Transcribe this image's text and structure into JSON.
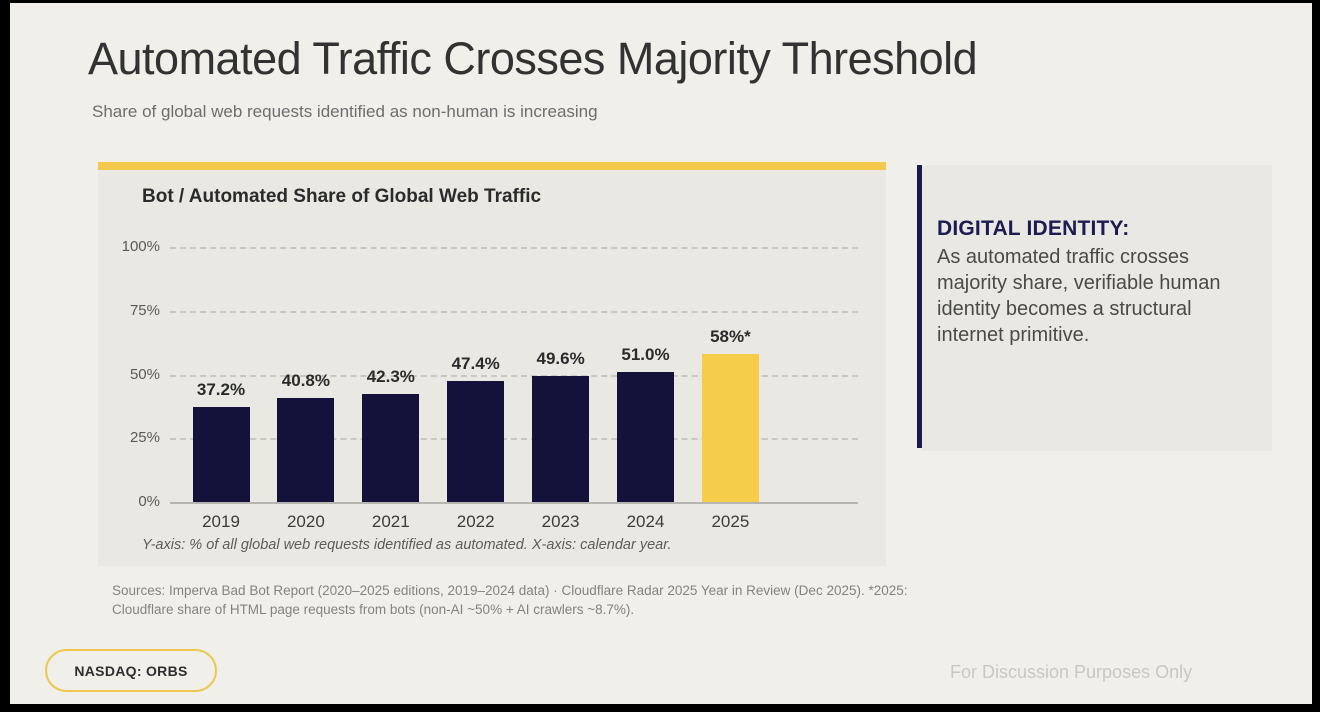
{
  "slide": {
    "title": "Automated Traffic Crosses Majority Threshold",
    "subtitle": "Share of global web requests identified as non-human is increasing",
    "ticker_badge": "NASDAQ: ORBS",
    "disclaimer": "For Discussion Purposes Only"
  },
  "chart_card": {
    "title": "Bot / Automated Share of Global Web Traffic",
    "axis_note": "Y-axis: % of all global web requests identified as automated.  X-axis: calendar year.",
    "sources": "Sources: Imperva Bad Bot Report (2020–2025 editions, 2019–2024 data) · Cloudflare Radar 2025 Year in Review (Dec 2025).  *2025: Cloudflare share of HTML page requests from bots (non-AI ~50% + AI crawlers ~8.7%)."
  },
  "chart_data": {
    "type": "bar",
    "title": "Bot / Automated Share of Global Web Traffic",
    "categories": [
      "2019",
      "2020",
      "2021",
      "2022",
      "2023",
      "2024",
      "2025"
    ],
    "values": [
      37.2,
      40.8,
      42.3,
      47.4,
      49.6,
      51.0,
      58
    ],
    "value_labels": [
      "37.2%",
      "40.8%",
      "42.3%",
      "47.4%",
      "49.6%",
      "51.0%",
      "58%*"
    ],
    "highlight_index": 6,
    "ylabel": "% of all global web requests identified as automated",
    "xlabel": "calendar year",
    "ylim": [
      0,
      100
    ],
    "yticks": [
      "0%",
      "25%",
      "50%",
      "75%",
      "100%"
    ],
    "grid": "dashed horizontal gridlines, solid baseline",
    "legend": "none",
    "bar_color": "#14123a",
    "highlight_color": "#f6cd4b"
  },
  "side_panel": {
    "heading": "DIGITAL IDENTITY:",
    "body": "As automated traffic crosses majority share, verifiable human identity becomes a structural internet primitive."
  },
  "colors": {
    "page_background": "#f0efea",
    "card_background": "#e9e8e3",
    "accent_yellow": "#f2c84d",
    "navy": "#14123a",
    "panel_navy": "#1a1950"
  }
}
